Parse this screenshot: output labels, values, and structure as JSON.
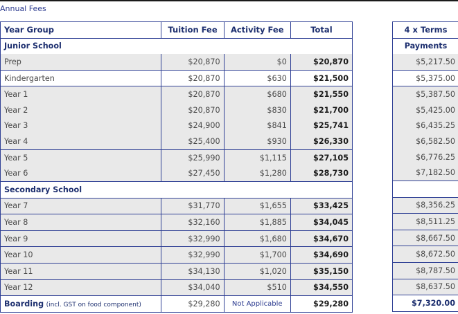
{
  "title": "Annual Fees",
  "headers": {
    "year_group": "Year Group",
    "tuition_fee": "Tuition Fee",
    "activity_fee": "Activity Fee",
    "total": "Total",
    "terms": "4 x Terms",
    "payments": "Payments"
  },
  "sections": {
    "junior": "Junior School",
    "secondary": "Secondary School"
  },
  "junior_rows": [
    {
      "year": "Prep",
      "tuition": "$20,870",
      "activity": "$0",
      "total": "$20,870",
      "payment": "$5,217.50"
    },
    {
      "year": "Kindergarten",
      "tuition": "$20,870",
      "activity": "$630",
      "total": "$21,500",
      "payment": "$5,375.00"
    },
    {
      "year": "Year 1",
      "tuition": "$20,870",
      "activity": "$680",
      "total": "$21,550",
      "payment": "$5,387.50"
    },
    {
      "year": "Year 2",
      "tuition": "$20,870",
      "activity": "$830",
      "total": "$21,700",
      "payment": "$5,425.00"
    },
    {
      "year": "Year 3",
      "tuition": "$24,900",
      "activity": "$841",
      "total": "$25,741",
      "payment": "$6,435.25"
    },
    {
      "year": "Year 4",
      "tuition": "$25,400",
      "activity": "$930",
      "total": "$26,330",
      "payment": "$6,582.50"
    },
    {
      "year": "Year 5",
      "tuition": "$25,990",
      "activity": "$1,115",
      "total": "$27,105",
      "payment": "$6,776.25"
    },
    {
      "year": "Year 6",
      "tuition": "$27,450",
      "activity": "$1,280",
      "total": "$28,730",
      "payment": "$7,182.50"
    }
  ],
  "secondary_rows": [
    {
      "year": "Year 7",
      "tuition": "$31,770",
      "activity": "$1,655",
      "total": "$33,425",
      "payment": "$8,356.25"
    },
    {
      "year": "Year 8",
      "tuition": "$32,160",
      "activity": "$1,885",
      "total": "$34,045",
      "payment": "$8,511.25"
    },
    {
      "year": "Year 9",
      "tuition": "$32,990",
      "activity": "$1,680",
      "total": "$34,670",
      "payment": "$8,667.50"
    },
    {
      "year": "Year 10",
      "tuition": "$32,990",
      "activity": "$1,700",
      "total": "$34,690",
      "payment": "$8,672.50"
    },
    {
      "year": "Year 11",
      "tuition": "$34,130",
      "activity": "$1,020",
      "total": "$35,150",
      "payment": "$8,787.50"
    },
    {
      "year": "Year 12",
      "tuition": "$34,040",
      "activity": "$510",
      "total": "$34,550",
      "payment": "$8,637.50"
    }
  ],
  "boarding": {
    "label": "Boarding",
    "note": "(incl. GST on food component)",
    "tuition": "$29,280",
    "activity": "Not Applicable",
    "total": "$29,280",
    "payment": "$7,320.00"
  }
}
